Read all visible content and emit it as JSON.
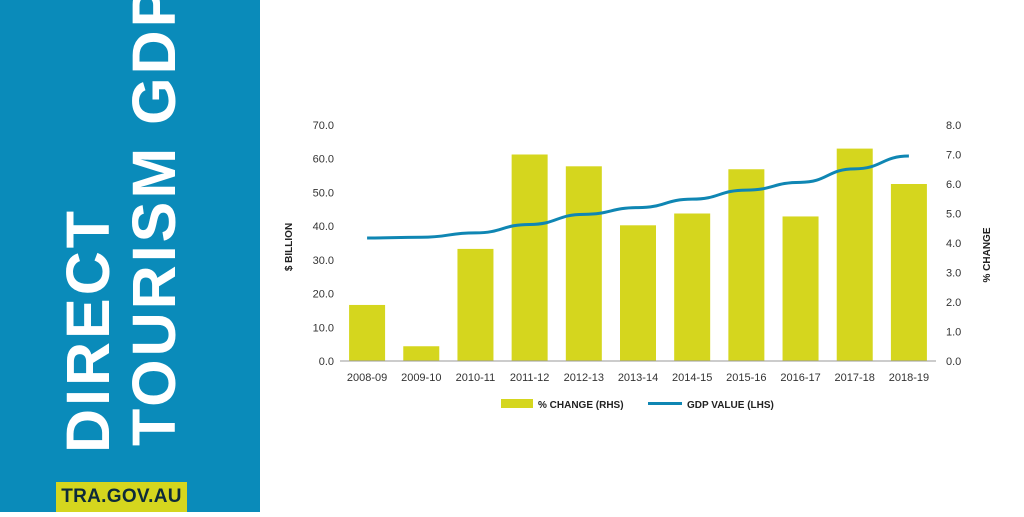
{
  "side_panel": {
    "title_line1": "DIRECT",
    "title_line2": "TOURISM GDP",
    "badge": "TRA.GOV.AU"
  },
  "colors": {
    "panel": "#0a8bba",
    "bar": "#d5d61e",
    "line": "#0f86b3",
    "badge": "#d5d61e"
  },
  "chart_data": {
    "type": "bar",
    "categories": [
      "2008-09",
      "2009-10",
      "2010-11",
      "2011-12",
      "2012-13",
      "2013-14",
      "2014-15",
      "2015-16",
      "2016-17",
      "2017-18",
      "2018-19"
    ],
    "series": [
      {
        "name": "% CHANGE (RHS)",
        "type": "bar",
        "axis": "right",
        "values": [
          1.9,
          0.5,
          3.8,
          7.0,
          6.6,
          4.6,
          5.0,
          6.5,
          4.9,
          7.2,
          6.0
        ]
      },
      {
        "name": "GDP VALUE (LHS)",
        "type": "line",
        "axis": "left",
        "values": [
          36.5,
          36.7,
          38.0,
          40.5,
          43.5,
          45.5,
          48.0,
          50.7,
          53.0,
          57.0,
          60.8
        ]
      }
    ],
    "ylabel_left": "$ BILLION",
    "ylabel_right": "% CHANGE",
    "ylim_left": [
      0,
      70
    ],
    "ylim_right": [
      0,
      8
    ],
    "yticks_left": [
      "0.0",
      "10.0",
      "20.0",
      "30.0",
      "40.0",
      "50.0",
      "60.0",
      "70.0"
    ],
    "yticks_right": [
      "0.0",
      "1.0",
      "2.0",
      "3.0",
      "4.0",
      "5.0",
      "6.0",
      "7.0",
      "8.0"
    ],
    "grid": false,
    "legend_position": "bottom"
  }
}
